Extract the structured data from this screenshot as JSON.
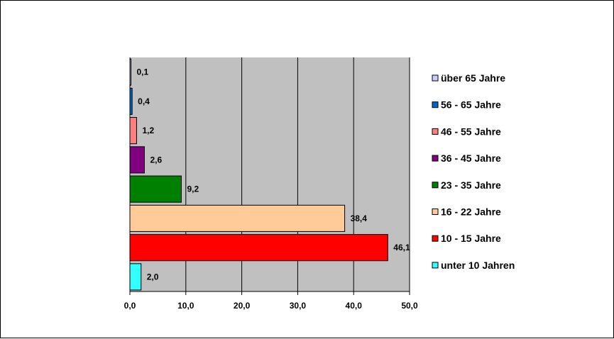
{
  "chart_data": {
    "type": "bar",
    "orientation": "horizontal",
    "categories": [
      "unter 10 Jahren",
      "10 - 15 Jahre",
      "16 - 22 Jahre",
      "23 - 35 Jahre",
      "36 - 45 Jahre",
      "46 - 55 Jahre",
      "56 - 65 Jahre",
      "über 65 Jahre"
    ],
    "values": [
      2.0,
      46.1,
      38.4,
      9.2,
      2.6,
      1.2,
      0.4,
      0.1
    ],
    "data_labels": [
      "2,0",
      "46,1",
      "38,4",
      "9,2",
      "2,6",
      "1,2",
      "0,4",
      "0,1"
    ],
    "colors": [
      "#33ffff",
      "#ff0000",
      "#ffcc99",
      "#008000",
      "#800080",
      "#ff8080",
      "#0066cc",
      "#ccccff"
    ],
    "xlim": [
      0,
      50
    ],
    "x_ticks": [
      0,
      10,
      20,
      30,
      40,
      50
    ],
    "x_tick_labels": [
      "0,0",
      "10,0",
      "20,0",
      "30,0",
      "40,0",
      "50,0"
    ],
    "plot_background": "#c0c0c0",
    "grid": true,
    "legend_position": "right",
    "title": "",
    "xlabel": "",
    "ylabel": ""
  }
}
